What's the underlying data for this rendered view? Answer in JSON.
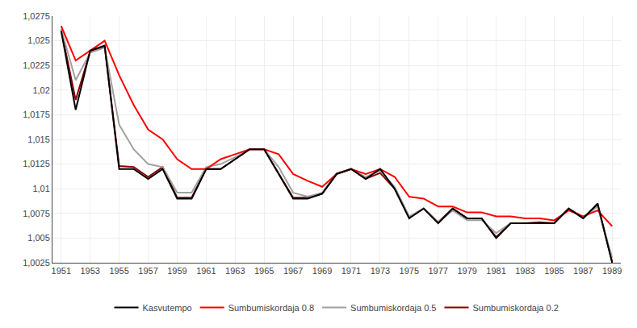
{
  "chart_data": {
    "type": "line",
    "x": [
      1951,
      1952,
      1953,
      1954,
      1955,
      1956,
      1957,
      1958,
      1959,
      1960,
      1961,
      1962,
      1963,
      1964,
      1965,
      1966,
      1967,
      1968,
      1969,
      1970,
      1971,
      1972,
      1973,
      1974,
      1975,
      1976,
      1977,
      1978,
      1979,
      1980,
      1981,
      1982,
      1983,
      1984,
      1985,
      1986,
      1987,
      1988,
      1989
    ],
    "series": [
      {
        "name": "Kasvutempo",
        "color": "#000000",
        "values": [
          1.026,
          1.018,
          1.024,
          1.0245,
          1.012,
          1.012,
          1.011,
          1.012,
          1.009,
          1.009,
          1.012,
          1.012,
          1.013,
          1.014,
          1.014,
          1.0115,
          1.009,
          1.009,
          1.0095,
          1.0115,
          1.012,
          1.011,
          1.012,
          1.01,
          1.007,
          1.008,
          1.0065,
          1.008,
          1.007,
          1.007,
          1.005,
          1.0065,
          1.0065,
          1.0065,
          1.0065,
          1.008,
          1.007,
          1.0085,
          1.0025
        ]
      },
      {
        "name": "Sumbumiskordaja 0.8",
        "color": "#FF0000",
        "values": [
          1.0265,
          1.023,
          1.024,
          1.025,
          1.0215,
          1.0185,
          1.016,
          1.015,
          1.013,
          1.012,
          1.012,
          1.013,
          1.0135,
          1.014,
          1.014,
          1.0135,
          1.0115,
          1.0108,
          1.0102,
          1.0115,
          1.012,
          1.0115,
          1.012,
          1.0112,
          1.0092,
          1.009,
          1.0082,
          1.0082,
          1.0076,
          1.0076,
          1.0072,
          1.0072,
          1.007,
          1.007,
          1.0068,
          1.0078,
          1.0072,
          1.0078,
          1.0062
        ]
      },
      {
        "name": "Sumbumiskordaja 0.5",
        "color": "#A0A0A0",
        "values": [
          1.0262,
          1.021,
          1.0238,
          1.0243,
          1.0165,
          1.014,
          1.0125,
          1.0122,
          1.0096,
          1.0096,
          1.0122,
          1.0125,
          1.0132,
          1.014,
          1.014,
          1.0122,
          1.0096,
          1.0092,
          1.0096,
          1.0116,
          1.012,
          1.0112,
          1.0118,
          1.0102,
          1.0072,
          1.008,
          1.0066,
          1.0078,
          1.0068,
          1.0068,
          1.0055,
          1.0065,
          1.0065,
          1.0065,
          1.0065,
          1.008,
          1.007,
          1.0082,
          1.003
        ]
      },
      {
        "name": "Sumbumiskordaja 0.2",
        "color": "#8B0000",
        "values": [
          1.0261,
          1.019,
          1.0239,
          1.0244,
          1.0123,
          1.0122,
          1.0112,
          1.0122,
          1.0091,
          1.0091,
          1.012,
          1.012,
          1.013,
          1.014,
          1.014,
          1.0115,
          1.0091,
          1.0091,
          1.0095,
          1.0115,
          1.012,
          1.011,
          1.0116,
          1.01,
          1.0071,
          1.008,
          1.0066,
          1.008,
          1.007,
          1.007,
          1.0051,
          1.0065,
          1.0065,
          1.0066,
          1.0065,
          1.008,
          1.0071,
          1.0083,
          1.0026
        ]
      }
    ],
    "xlim": [
      1950.4,
      1989.6
    ],
    "xticks": [
      1951,
      1953,
      1955,
      1957,
      1959,
      1961,
      1963,
      1965,
      1967,
      1969,
      1971,
      1973,
      1975,
      1977,
      1979,
      1981,
      1983,
      1985,
      1987,
      1989
    ],
    "ylim": [
      1.0025,
      1.0275
    ],
    "yticks": [
      {
        "value": 1.0025,
        "label": "1,0025"
      },
      {
        "value": 1.005,
        "label": "1,005"
      },
      {
        "value": 1.0075,
        "label": "1,0075"
      },
      {
        "value": 1.01,
        "label": "1,01"
      },
      {
        "value": 1.0125,
        "label": "1,0125"
      },
      {
        "value": 1.015,
        "label": "1,015"
      },
      {
        "value": 1.0175,
        "label": "1,0175"
      },
      {
        "value": 1.02,
        "label": "1,02"
      },
      {
        "value": 1.0225,
        "label": "1,0225"
      },
      {
        "value": 1.025,
        "label": "1,025"
      },
      {
        "value": 1.0275,
        "label": "1,0275"
      }
    ],
    "grid": true,
    "legend": "bottom"
  }
}
